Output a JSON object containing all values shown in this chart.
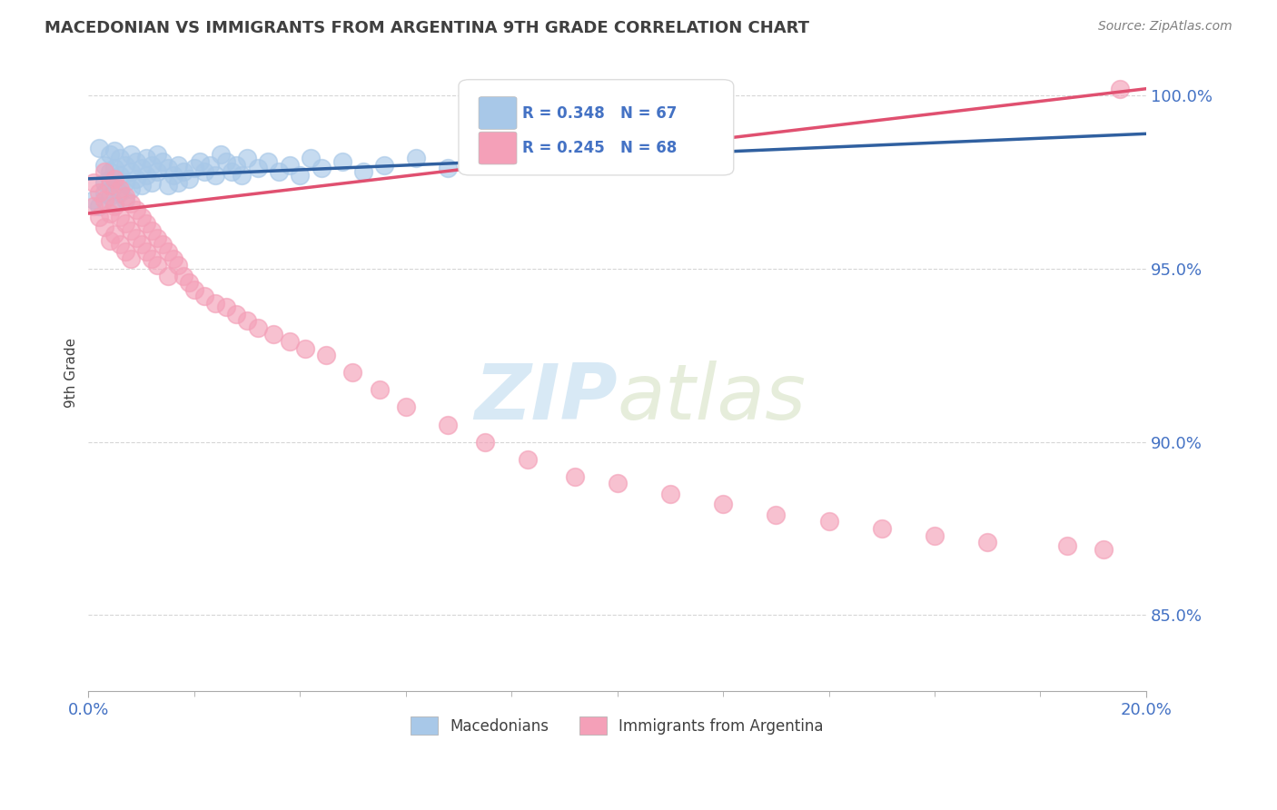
{
  "title": "MACEDONIAN VS IMMIGRANTS FROM ARGENTINA 9TH GRADE CORRELATION CHART",
  "source": "Source: ZipAtlas.com",
  "ylabel": "9th Grade",
  "xlim": [
    0.0,
    0.2
  ],
  "ylim": [
    0.828,
    1.012
  ],
  "yticks": [
    0.85,
    0.9,
    0.95,
    1.0
  ],
  "ytick_labels": [
    "85.0%",
    "90.0%",
    "95.0%",
    "100.0%"
  ],
  "legend_r_blue": "R = 0.348",
  "legend_n_blue": "N = 67",
  "legend_r_pink": "R = 0.245",
  "legend_n_pink": "N = 68",
  "color_blue": "#a8c8e8",
  "color_pink": "#f4a0b8",
  "line_color_blue": "#3060a0",
  "line_color_pink": "#e05070",
  "background_color": "#ffffff",
  "grid_color": "#cccccc",
  "axis_color": "#4472c4",
  "title_color": "#404040",
  "source_color": "#808080",
  "mac_x": [
    0.001,
    0.002,
    0.002,
    0.003,
    0.003,
    0.003,
    0.004,
    0.004,
    0.004,
    0.004,
    0.005,
    0.005,
    0.005,
    0.005,
    0.006,
    0.006,
    0.006,
    0.007,
    0.007,
    0.007,
    0.008,
    0.008,
    0.008,
    0.009,
    0.009,
    0.01,
    0.01,
    0.011,
    0.011,
    0.012,
    0.012,
    0.013,
    0.013,
    0.014,
    0.015,
    0.015,
    0.016,
    0.017,
    0.017,
    0.018,
    0.019,
    0.02,
    0.021,
    0.022,
    0.023,
    0.024,
    0.025,
    0.026,
    0.027,
    0.028,
    0.029,
    0.03,
    0.032,
    0.034,
    0.036,
    0.038,
    0.04,
    0.042,
    0.044,
    0.048,
    0.052,
    0.056,
    0.062,
    0.068,
    0.075,
    0.082,
    0.092
  ],
  "mac_y": [
    0.97,
    0.968,
    0.985,
    0.975,
    0.98,
    0.972,
    0.978,
    0.983,
    0.976,
    0.971,
    0.979,
    0.984,
    0.974,
    0.969,
    0.982,
    0.977,
    0.972,
    0.98,
    0.975,
    0.97,
    0.983,
    0.978,
    0.973,
    0.981,
    0.976,
    0.979,
    0.974,
    0.982,
    0.977,
    0.98,
    0.975,
    0.983,
    0.978,
    0.981,
    0.979,
    0.974,
    0.977,
    0.975,
    0.98,
    0.978,
    0.976,
    0.979,
    0.981,
    0.978,
    0.98,
    0.977,
    0.983,
    0.981,
    0.978,
    0.98,
    0.977,
    0.982,
    0.979,
    0.981,
    0.978,
    0.98,
    0.977,
    0.982,
    0.979,
    0.981,
    0.978,
    0.98,
    0.982,
    0.979,
    0.981,
    0.983,
    0.985
  ],
  "arg_x": [
    0.001,
    0.001,
    0.002,
    0.002,
    0.003,
    0.003,
    0.003,
    0.004,
    0.004,
    0.004,
    0.005,
    0.005,
    0.005,
    0.006,
    0.006,
    0.006,
    0.007,
    0.007,
    0.007,
    0.008,
    0.008,
    0.008,
    0.009,
    0.009,
    0.01,
    0.01,
    0.011,
    0.011,
    0.012,
    0.012,
    0.013,
    0.013,
    0.014,
    0.015,
    0.015,
    0.016,
    0.017,
    0.018,
    0.019,
    0.02,
    0.022,
    0.024,
    0.026,
    0.028,
    0.03,
    0.032,
    0.035,
    0.038,
    0.041,
    0.045,
    0.05,
    0.055,
    0.06,
    0.068,
    0.075,
    0.083,
    0.092,
    0.1,
    0.11,
    0.12,
    0.13,
    0.14,
    0.15,
    0.16,
    0.17,
    0.185,
    0.192,
    0.195
  ],
  "arg_y": [
    0.975,
    0.968,
    0.972,
    0.965,
    0.978,
    0.97,
    0.962,
    0.974,
    0.966,
    0.958,
    0.976,
    0.968,
    0.96,
    0.973,
    0.965,
    0.957,
    0.971,
    0.963,
    0.955,
    0.969,
    0.961,
    0.953,
    0.967,
    0.959,
    0.965,
    0.957,
    0.963,
    0.955,
    0.961,
    0.953,
    0.959,
    0.951,
    0.957,
    0.955,
    0.948,
    0.953,
    0.951,
    0.948,
    0.946,
    0.944,
    0.942,
    0.94,
    0.939,
    0.937,
    0.935,
    0.933,
    0.931,
    0.929,
    0.927,
    0.925,
    0.92,
    0.915,
    0.91,
    0.905,
    0.9,
    0.895,
    0.89,
    0.888,
    0.885,
    0.882,
    0.879,
    0.877,
    0.875,
    0.873,
    0.871,
    0.87,
    0.869,
    1.002
  ]
}
